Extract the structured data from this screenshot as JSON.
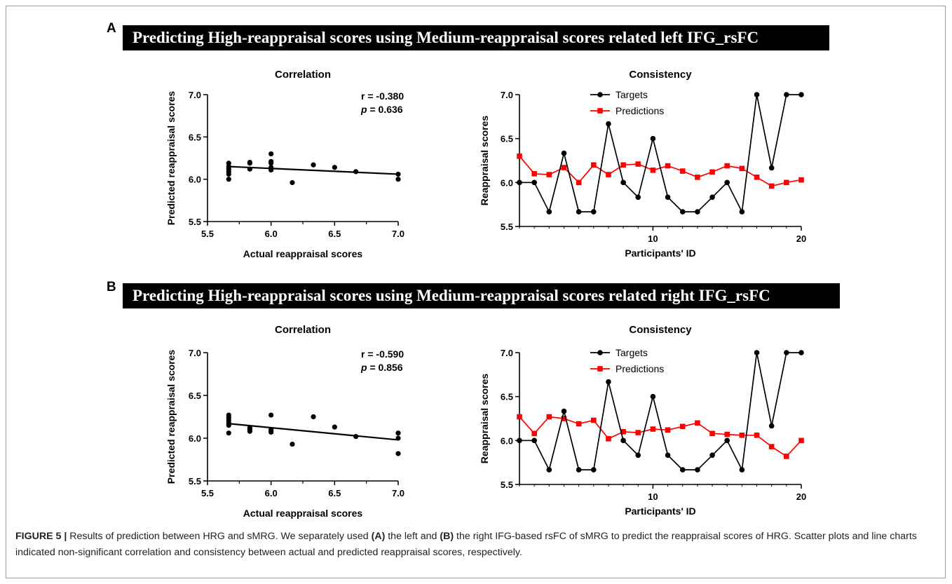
{
  "panel_a": {
    "letter": "A",
    "banner": "Predicting High-reappraisal scores using Medium-reappraisal scores related left IFG_rsFC"
  },
  "panel_b": {
    "letter": "B",
    "banner": "Predicting High-reappraisal scores using Medium-reappraisal scores related right IFG_rsFC"
  },
  "caption": {
    "label": "FIGURE 5 |",
    "p1": " Results of prediction between HRG and sMRG. We separately used ",
    "a": "(A)",
    "p2": " the left and ",
    "b": "(B)",
    "p3": " the right IFG-based rsFC of sMRG to predict the reappraisal scores of HRG. Scatter plots and line charts indicated non-significant correlation and consistency between actual and predicted reappraisal scores, respectively."
  },
  "chart_data": [
    {
      "type": "scatter",
      "title": "Correlation",
      "xlabel": "Actual reappraisal scores",
      "ylabel": "Predicted reappraisal scores",
      "xlim": [
        5.5,
        7.0
      ],
      "ylim": [
        5.5,
        7.0
      ],
      "xticks": [
        "5.5",
        "6.0",
        "6.5",
        "7.0"
      ],
      "yticks": [
        "5.5",
        "6.0",
        "6.5",
        "7.0"
      ],
      "annotation": {
        "r": "r = -0.380",
        "p_label": "p",
        "p_rest": " = 0.636"
      },
      "points": [
        [
          5.667,
          6.0
        ],
        [
          5.667,
          6.06
        ],
        [
          5.667,
          6.09
        ],
        [
          5.667,
          6.12
        ],
        [
          5.667,
          6.15
        ],
        [
          5.667,
          6.19
        ],
        [
          5.833,
          6.12
        ],
        [
          5.833,
          6.19
        ],
        [
          5.833,
          6.2
        ],
        [
          6.0,
          6.11
        ],
        [
          6.0,
          6.14
        ],
        [
          6.0,
          6.19
        ],
        [
          6.0,
          6.21
        ],
        [
          6.0,
          6.3
        ],
        [
          6.167,
          5.96
        ],
        [
          6.333,
          6.17
        ],
        [
          6.5,
          6.14
        ],
        [
          6.667,
          6.09
        ],
        [
          7.0,
          6.0
        ],
        [
          7.0,
          6.06
        ]
      ],
      "fit_line": [
        [
          5.667,
          6.15
        ],
        [
          7.0,
          6.06
        ]
      ]
    },
    {
      "type": "line",
      "title": "Consistency",
      "xlabel": "Participants' ID",
      "ylabel": "Reappraisal scores",
      "xlim": [
        1,
        20
      ],
      "ylim": [
        5.5,
        7.0
      ],
      "xticks": [
        "10",
        "20"
      ],
      "yticks": [
        "5.5",
        "6.0",
        "6.5",
        "7.0"
      ],
      "legend": "top-center",
      "x": [
        1,
        2,
        3,
        4,
        5,
        6,
        7,
        8,
        9,
        10,
        11,
        12,
        13,
        14,
        15,
        16,
        17,
        18,
        19,
        20
      ],
      "series": [
        {
          "name": "Targets",
          "color": "#000000",
          "marker": "circle",
          "values": [
            6.0,
            6.0,
            5.667,
            6.333,
            5.667,
            5.667,
            6.667,
            6.0,
            5.833,
            6.5,
            5.833,
            5.667,
            5.667,
            5.833,
            6.0,
            5.667,
            7.0,
            6.167,
            7.0,
            7.0
          ]
        },
        {
          "name": "Predictions",
          "color": "#ff0000",
          "marker": "square",
          "values": [
            6.3,
            6.1,
            6.09,
            6.17,
            6.0,
            6.2,
            6.09,
            6.2,
            6.21,
            6.14,
            6.19,
            6.13,
            6.06,
            6.12,
            6.19,
            6.16,
            6.06,
            5.96,
            6.0,
            6.03
          ]
        }
      ]
    },
    {
      "type": "scatter",
      "title": "Correlation",
      "xlabel": "Actual reappraisal scores",
      "ylabel": "Predicted reappraisal scores",
      "xlim": [
        5.5,
        7.0
      ],
      "ylim": [
        5.5,
        7.0
      ],
      "xticks": [
        "5.5",
        "6.0",
        "6.5",
        "7.0"
      ],
      "yticks": [
        "5.5",
        "6.0",
        "6.5",
        "7.0"
      ],
      "annotation": {
        "r": "r = -0.590",
        "p_label": "p",
        "p_rest": " = 0.856"
      },
      "points": [
        [
          5.667,
          6.06
        ],
        [
          5.667,
          6.15
        ],
        [
          5.667,
          6.18
        ],
        [
          5.667,
          6.21
        ],
        [
          5.667,
          6.24
        ],
        [
          5.667,
          6.27
        ],
        [
          5.833,
          6.08
        ],
        [
          5.833,
          6.1
        ],
        [
          5.833,
          6.12
        ],
        [
          6.0,
          6.07
        ],
        [
          6.0,
          6.08
        ],
        [
          6.0,
          6.1
        ],
        [
          6.0,
          6.27
        ],
        [
          6.167,
          5.93
        ],
        [
          6.333,
          6.25
        ],
        [
          6.5,
          6.13
        ],
        [
          6.667,
          6.02
        ],
        [
          7.0,
          5.82
        ],
        [
          7.0,
          6.0
        ],
        [
          7.0,
          6.06
        ]
      ],
      "fit_line": [
        [
          5.667,
          6.17
        ],
        [
          7.0,
          5.98
        ]
      ]
    },
    {
      "type": "line",
      "title": "Consistency",
      "xlabel": "Participants' ID",
      "ylabel": "Reappraisal scores",
      "xlim": [
        1,
        20
      ],
      "ylim": [
        5.5,
        7.0
      ],
      "xticks": [
        "10",
        "20"
      ],
      "yticks": [
        "5.5",
        "6.0",
        "6.5",
        "7.0"
      ],
      "legend": "top-center",
      "x": [
        1,
        2,
        3,
        4,
        5,
        6,
        7,
        8,
        9,
        10,
        11,
        12,
        13,
        14,
        15,
        16,
        17,
        18,
        19,
        20
      ],
      "series": [
        {
          "name": "Targets",
          "color": "#000000",
          "marker": "circle",
          "values": [
            6.0,
            6.0,
            5.667,
            6.333,
            5.667,
            5.667,
            6.667,
            6.0,
            5.833,
            6.5,
            5.833,
            5.667,
            5.667,
            5.833,
            6.0,
            5.667,
            7.0,
            6.167,
            7.0,
            7.0
          ]
        },
        {
          "name": "Predictions",
          "color": "#ff0000",
          "marker": "square",
          "values": [
            6.27,
            6.08,
            6.27,
            6.25,
            6.19,
            6.23,
            6.02,
            6.1,
            6.09,
            6.13,
            6.12,
            6.16,
            6.2,
            6.08,
            6.07,
            6.06,
            6.06,
            5.93,
            5.82,
            6.0
          ]
        }
      ]
    }
  ]
}
